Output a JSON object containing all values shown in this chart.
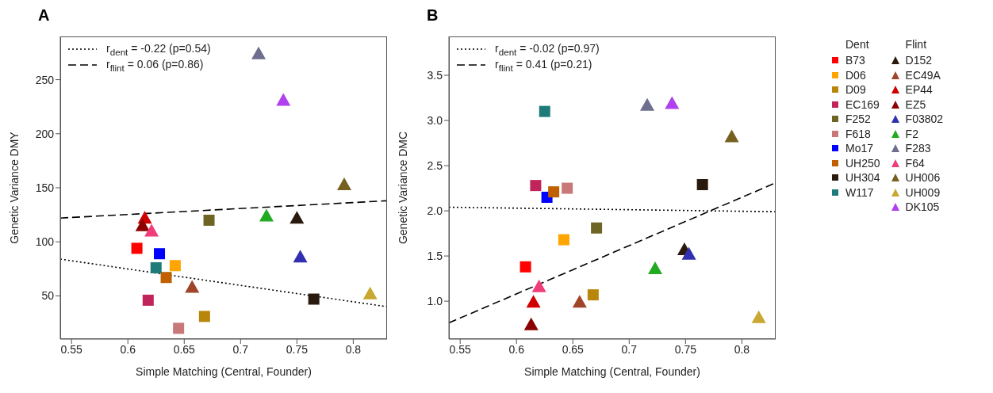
{
  "chart_data": [
    {
      "type": "scatter",
      "title": "A",
      "xlabel": "Simple Matching (Central, Founder)",
      "ylabel": "Genetic Variance DMY",
      "xlim": [
        0.54,
        0.83
      ],
      "xticks": [
        0.55,
        0.6,
        0.65,
        0.7,
        0.75,
        0.8
      ],
      "ylim": [
        10,
        290
      ],
      "yticks": [
        50,
        100,
        150,
        200,
        250
      ],
      "legend": "top left",
      "series": [
        {
          "color": "#ff0000",
          "marker": "square",
          "x": [
            0.608
          ],
          "values": [
            94
          ]
        },
        {
          "color": "#ffa500",
          "marker": "square",
          "x": [
            0.642
          ],
          "values": [
            78
          ]
        },
        {
          "color": "#b8860b",
          "marker": "square",
          "x": [
            0.668
          ],
          "values": [
            31
          ]
        },
        {
          "color": "#c0245a",
          "marker": "square",
          "x": [
            0.618
          ],
          "values": [
            46
          ]
        },
        {
          "color": "#6e6424",
          "marker": "square",
          "x": [
            0.672
          ],
          "values": [
            120
          ]
        },
        {
          "color": "#c87878",
          "marker": "square",
          "x": [
            0.645
          ],
          "values": [
            20
          ]
        },
        {
          "color": "#0000ff",
          "marker": "square",
          "x": [
            0.628
          ],
          "values": [
            89
          ]
        },
        {
          "color": "#c06000",
          "marker": "square",
          "x": [
            0.634
          ],
          "values": [
            67
          ]
        },
        {
          "color": "#2a1a0e",
          "marker": "square",
          "x": [
            0.765
          ],
          "values": [
            47
          ]
        },
        {
          "color": "#1f7a7a",
          "marker": "square",
          "x": [
            0.625
          ],
          "values": [
            76
          ]
        },
        {
          "color": "#2a1a0e",
          "marker": "triangle",
          "x": [
            0.75
          ],
          "values": [
            122
          ]
        },
        {
          "color": "#a0442a",
          "marker": "triangle",
          "x": [
            0.657
          ],
          "values": [
            58
          ]
        },
        {
          "color": "#d00000",
          "marker": "triangle",
          "x": [
            0.615
          ],
          "values": [
            122
          ]
        },
        {
          "color": "#8b0000",
          "marker": "triangle",
          "x": [
            0.613
          ],
          "values": [
            115
          ]
        },
        {
          "color": "#3030b0",
          "marker": "triangle",
          "x": [
            0.753
          ],
          "values": [
            86
          ]
        },
        {
          "color": "#22aa22",
          "marker": "triangle",
          "x": [
            0.723
          ],
          "values": [
            124
          ]
        },
        {
          "color": "#6e6e8e",
          "marker": "triangle",
          "x": [
            0.716
          ],
          "values": [
            274
          ]
        },
        {
          "color": "#f03c78",
          "marker": "triangle",
          "x": [
            0.621
          ],
          "values": [
            110
          ]
        },
        {
          "color": "#756020",
          "marker": "triangle",
          "x": [
            0.792
          ],
          "values": [
            153
          ]
        },
        {
          "color": "#c8a830",
          "marker": "triangle",
          "x": [
            0.815
          ],
          "values": [
            52
          ]
        },
        {
          "color": "#b040f0",
          "marker": "triangle",
          "x": [
            0.738
          ],
          "values": [
            231
          ]
        },
        {
          "type": "line",
          "name": "r$_{dent}$ = -0.22 (p=0.54)",
          "color": "#000000",
          "line_style": "dotted",
          "x": [
            0.54,
            0.83
          ],
          "values": [
            84,
            40
          ]
        },
        {
          "type": "line",
          "name": "r$_{flint}$ = 0.06 (p=0.86)",
          "color": "#000000",
          "line_style": "dashed",
          "x": [
            0.54,
            0.83
          ],
          "values": [
            122,
            138
          ]
        }
      ]
    },
    {
      "type": "scatter",
      "title": "B",
      "xlabel": "Simple Matching (Central, Founder)",
      "ylabel": "Genetic Variance DMC",
      "xlim": [
        0.54,
        0.83
      ],
      "xticks": [
        0.55,
        0.6,
        0.65,
        0.7,
        0.75,
        0.8
      ],
      "ylim": [
        0.58,
        3.93
      ],
      "yticks": [
        {
          "value": 1,
          "label": "1.0"
        },
        1.5,
        {
          "value": 2,
          "label": "2.0"
        },
        2.5,
        {
          "value": 3,
          "label": "3.0"
        },
        3.5
      ],
      "legend": "right",
      "annotations": [
        "Dent",
        "Flint"
      ],
      "series": [
        {
          "name": "B73",
          "color": "#ff0000",
          "marker": "square",
          "x": [
            0.608
          ],
          "values": [
            1.38
          ]
        },
        {
          "name": "D06",
          "color": "#ffa500",
          "marker": "square",
          "x": [
            0.642
          ],
          "values": [
            1.68
          ]
        },
        {
          "name": "D09",
          "color": "#b8860b",
          "marker": "square",
          "x": [
            0.668
          ],
          "values": [
            1.07
          ]
        },
        {
          "name": "EC169",
          "color": "#c0245a",
          "marker": "square",
          "x": [
            0.617
          ],
          "values": [
            2.28
          ]
        },
        {
          "name": "F252",
          "color": "#6e6424",
          "marker": "square",
          "x": [
            0.671
          ],
          "values": [
            1.81
          ]
        },
        {
          "name": "F618",
          "color": "#c87878",
          "marker": "square",
          "x": [
            0.645
          ],
          "values": [
            2.25
          ]
        },
        {
          "name": "Mo17",
          "color": "#0000ff",
          "marker": "square",
          "x": [
            0.627
          ],
          "values": [
            2.15
          ]
        },
        {
          "name": "UH250",
          "color": "#c06000",
          "marker": "square",
          "x": [
            0.633
          ],
          "values": [
            2.21
          ]
        },
        {
          "name": "UH304",
          "color": "#2a1a0e",
          "marker": "square",
          "x": [
            0.765
          ],
          "values": [
            2.29
          ]
        },
        {
          "name": "W117",
          "color": "#1f7a7a",
          "marker": "square",
          "x": [
            0.625
          ],
          "values": [
            3.1
          ]
        },
        {
          "name": "D152",
          "color": "#2a1a0e",
          "marker": "triangle",
          "x": [
            0.749
          ],
          "values": [
            1.57
          ]
        },
        {
          "name": "EC49A",
          "color": "#a0442a",
          "marker": "triangle",
          "x": [
            0.656
          ],
          "values": [
            0.99
          ]
        },
        {
          "name": "EP44",
          "color": "#d00000",
          "marker": "triangle",
          "x": [
            0.615
          ],
          "values": [
            0.99
          ]
        },
        {
          "name": "EZ5",
          "color": "#8b0000",
          "marker": "triangle",
          "x": [
            0.613
          ],
          "values": [
            0.74
          ]
        },
        {
          "name": "F03802",
          "color": "#3030b0",
          "marker": "triangle",
          "x": [
            0.753
          ],
          "values": [
            1.52
          ]
        },
        {
          "name": "F2",
          "color": "#22aa22",
          "marker": "triangle",
          "x": [
            0.723
          ],
          "values": [
            1.36
          ]
        },
        {
          "name": "F283",
          "color": "#6e6e8e",
          "marker": "triangle",
          "x": [
            0.716
          ],
          "values": [
            3.17
          ]
        },
        {
          "name": "F64",
          "color": "#f03c78",
          "marker": "triangle",
          "x": [
            0.62
          ],
          "values": [
            1.16
          ]
        },
        {
          "name": "UH006",
          "color": "#756020",
          "marker": "triangle",
          "x": [
            0.791
          ],
          "values": [
            2.82
          ]
        },
        {
          "name": "UH009",
          "color": "#c8a830",
          "marker": "triangle",
          "x": [
            0.815
          ],
          "values": [
            0.82
          ]
        },
        {
          "name": "DK105",
          "color": "#b040f0",
          "marker": "triangle",
          "x": [
            0.738
          ],
          "values": [
            3.19
          ]
        },
        {
          "type": "line",
          "name": "r$_{dent}$ = -0.02 (p=0.97)",
          "color": "#000000",
          "line_style": "dotted",
          "x": [
            0.54,
            0.83
          ],
          "values": [
            2.04,
            1.99
          ]
        },
        {
          "type": "line",
          "name": "r$_{flint}$ = 0.41 (p=0.21)",
          "color": "#000000",
          "line_style": "dashed",
          "x": [
            0.54,
            0.83
          ],
          "values": [
            0.76,
            2.31
          ]
        }
      ]
    }
  ]
}
